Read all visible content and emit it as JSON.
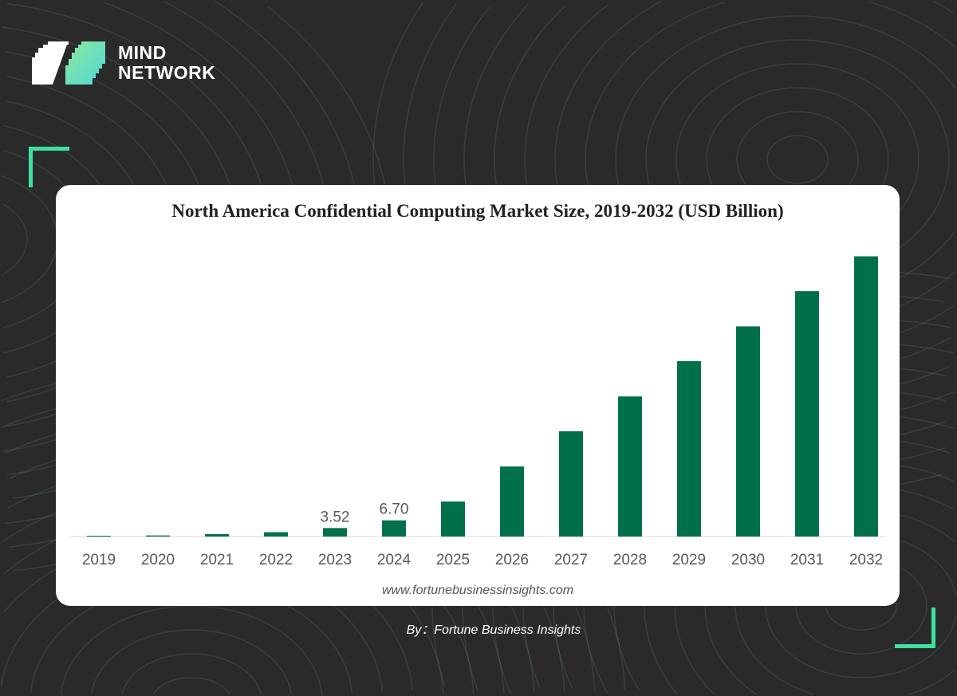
{
  "brand": {
    "line1": "MIND",
    "line2": "NETWORK"
  },
  "footer": {
    "byline": "By：Fortune Business Insights"
  },
  "colors": {
    "bar": "#00704a",
    "accent": "#3ee0a0",
    "background": "#2a2a2a"
  },
  "chart_data": {
    "type": "bar",
    "title": "North America Confidential Computing Market Size, 2019-2032 (USD Billion)",
    "source": "www.fortunebusinessinsights.com",
    "xlabel": "",
    "ylabel": "USD Billion",
    "categories": [
      "2019",
      "2020",
      "2021",
      "2022",
      "2023",
      "2024",
      "2025",
      "2026",
      "2027",
      "2028",
      "2029",
      "2030",
      "2031",
      "2032"
    ],
    "values": [
      0.3,
      0.45,
      1.0,
      1.8,
      3.52,
      6.7,
      14.5,
      29.0,
      43.6,
      58.0,
      72.6,
      87.0,
      101.6,
      116.0
    ],
    "data_labels": {
      "2023": "3.52",
      "2024": "6.70"
    },
    "ylim": [
      0,
      125
    ],
    "grid": false,
    "legend": "none"
  }
}
